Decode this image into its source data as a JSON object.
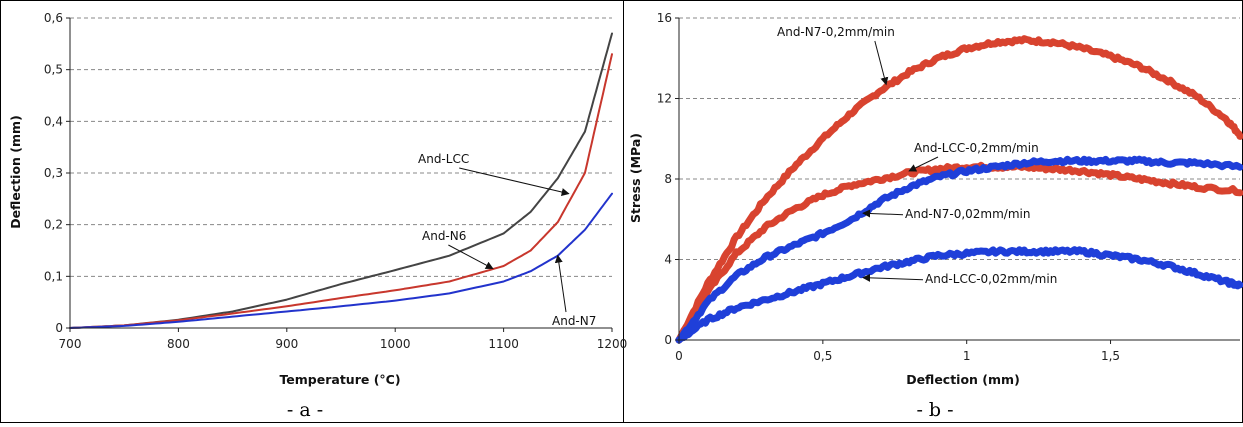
{
  "chart_data": [
    {
      "type": "line",
      "caption": "- a -",
      "xlabel": "Temperature (°C)",
      "ylabel": "Deflection (mm)",
      "xlim": [
        700,
        1200
      ],
      "ylim": [
        0,
        0.6
      ],
      "xticks": [
        "700",
        "800",
        "900",
        "1000",
        "1100",
        "1200"
      ],
      "yticks": [
        "0",
        "0,1",
        "0,2",
        "0,3",
        "0,4",
        "0,5",
        "0,6"
      ],
      "grid": "horizontal dashed",
      "colors": {
        "And-LCC": "#444444",
        "And-N6": "#c8372d",
        "And-N7": "#2233cc"
      },
      "series": [
        {
          "name": "And-LCC",
          "x": [
            700,
            750,
            800,
            850,
            900,
            950,
            1000,
            1050,
            1100,
            1125,
            1150,
            1175,
            1200
          ],
          "values": [
            0,
            0.005,
            0.016,
            0.032,
            0.055,
            0.085,
            0.112,
            0.14,
            0.183,
            0.225,
            0.29,
            0.38,
            0.57
          ]
        },
        {
          "name": "And-N6",
          "x": [
            700,
            750,
            800,
            850,
            900,
            950,
            1000,
            1050,
            1100,
            1125,
            1150,
            1175,
            1200
          ],
          "values": [
            0,
            0.005,
            0.015,
            0.028,
            0.042,
            0.058,
            0.073,
            0.09,
            0.12,
            0.15,
            0.205,
            0.3,
            0.53
          ]
        },
        {
          "name": "And-N7",
          "x": [
            700,
            750,
            800,
            850,
            900,
            950,
            1000,
            1050,
            1100,
            1125,
            1150,
            1175,
            1200
          ],
          "values": [
            0,
            0.004,
            0.012,
            0.022,
            0.032,
            0.042,
            0.053,
            0.067,
            0.09,
            0.11,
            0.14,
            0.19,
            0.26
          ]
        }
      ],
      "annotations": [
        {
          "text": "And-LCC",
          "series": "And-LCC",
          "x": 1160,
          "y": 0.26
        },
        {
          "text": "And-N6",
          "series": "And-N6",
          "x": 1090,
          "y": 0.115
        },
        {
          "text": "And-N7",
          "series": "And-N7",
          "x": 1150,
          "y": 0.14
        }
      ]
    },
    {
      "type": "line",
      "caption": "- b -",
      "xlabel": "Deflection (mm)",
      "ylabel": "Stress (MPa)",
      "xlim": [
        0,
        1.95
      ],
      "ylim": [
        0,
        16
      ],
      "xticks": [
        "0",
        "0,5",
        "1",
        "1,5"
      ],
      "yticks": [
        "0",
        "4",
        "8",
        "12",
        "16"
      ],
      "grid": "horizontal dashed",
      "colors": {
        "red": "#d8432f",
        "blue": "#1f3fd9"
      },
      "series": [
        {
          "name": "And-N7-0,2mm/min",
          "color": "red",
          "x": [
            0,
            0.1,
            0.2,
            0.3,
            0.4,
            0.5,
            0.6,
            0.7,
            0.8,
            0.9,
            1.0,
            1.1,
            1.2,
            1.3,
            1.4,
            1.5,
            1.6,
            1.7,
            1.8,
            1.9,
            1.95
          ],
          "values": [
            0,
            2.8,
            5.1,
            7.0,
            8.6,
            10.0,
            11.3,
            12.4,
            13.3,
            14.0,
            14.5,
            14.8,
            14.9,
            14.8,
            14.5,
            14.1,
            13.6,
            12.9,
            12.1,
            11.0,
            10.2
          ]
        },
        {
          "name": "And-LCC-0,2mm/min",
          "color": "red",
          "x": [
            0,
            0.1,
            0.2,
            0.3,
            0.4,
            0.5,
            0.6,
            0.7,
            0.8,
            0.9,
            1.0,
            1.1,
            1.2,
            1.3,
            1.4,
            1.5,
            1.6,
            1.7,
            1.8,
            1.95
          ],
          "values": [
            0,
            2.4,
            4.3,
            5.6,
            6.5,
            7.2,
            7.7,
            8.0,
            8.3,
            8.5,
            8.6,
            8.6,
            8.6,
            8.5,
            8.4,
            8.2,
            8.0,
            7.8,
            7.6,
            7.4
          ]
        },
        {
          "name": "And-N7-0,02mm/min",
          "color": "blue",
          "x": [
            0,
            0.1,
            0.2,
            0.3,
            0.4,
            0.5,
            0.6,
            0.7,
            0.8,
            0.9,
            1.0,
            1.1,
            1.2,
            1.3,
            1.4,
            1.5,
            1.6,
            1.7,
            1.8,
            1.95
          ],
          "values": [
            0,
            1.9,
            3.2,
            4.1,
            4.7,
            5.3,
            6.0,
            6.9,
            7.6,
            8.1,
            8.4,
            8.6,
            8.8,
            8.9,
            8.9,
            8.9,
            8.9,
            8.8,
            8.8,
            8.6
          ]
        },
        {
          "name": "And-LCC-0,02mm/min",
          "color": "blue",
          "x": [
            0,
            0.1,
            0.2,
            0.3,
            0.4,
            0.5,
            0.6,
            0.7,
            0.8,
            0.9,
            1.0,
            1.1,
            1.2,
            1.3,
            1.4,
            1.5,
            1.6,
            1.7,
            1.8,
            1.9,
            1.95
          ],
          "values": [
            0,
            1.0,
            1.6,
            2.0,
            2.4,
            2.8,
            3.2,
            3.6,
            3.9,
            4.2,
            4.3,
            4.4,
            4.4,
            4.4,
            4.4,
            4.2,
            4.0,
            3.7,
            3.3,
            2.9,
            2.7
          ]
        }
      ],
      "annotations": [
        {
          "text": "And-N7-0,2mm/min",
          "series": "And-N7-0,2mm/min",
          "x": 0.72,
          "y": 12.7
        },
        {
          "text": "And-LCC-0,2mm/min",
          "series": "And-LCC-0,2mm/min",
          "x": 0.8,
          "y": 8.4
        },
        {
          "text": "And-N7-0,02mm/min",
          "series": "And-N7-0,02mm/min",
          "x": 0.64,
          "y": 6.3
        },
        {
          "text": "And-LCC-0,02mm/min",
          "series": "And-LCC-0,02mm/min",
          "x": 0.64,
          "y": 3.1
        }
      ]
    }
  ]
}
